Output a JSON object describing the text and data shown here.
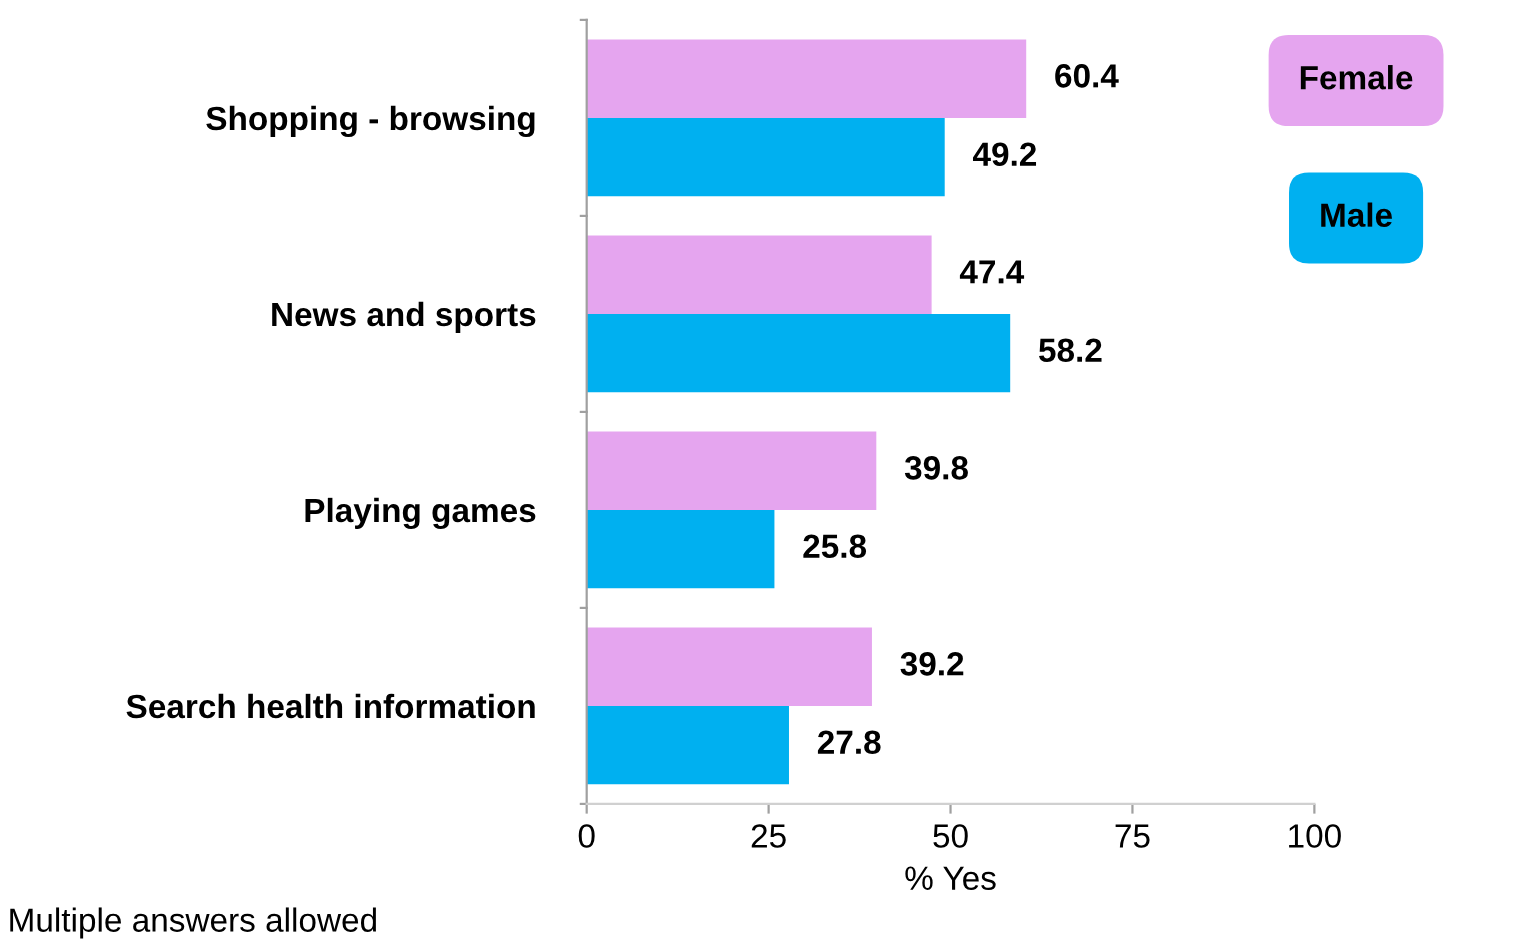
{
  "chart_data": {
    "type": "bar",
    "orientation": "horizontal",
    "categories": [
      "Shopping - browsing",
      "News and sports",
      "Playing games",
      "Search health information"
    ],
    "series": [
      {
        "name": "Female",
        "color": "#e5a5ef",
        "values": [
          60.4,
          47.4,
          39.8,
          39.2
        ]
      },
      {
        "name": "Male",
        "color": "#00b0f0",
        "values": [
          49.2,
          58.2,
          25.8,
          27.8
        ]
      }
    ],
    "xlim": [
      0,
      100
    ],
    "xticks": [
      0,
      25,
      50,
      75,
      100
    ],
    "xlabel": "% Yes",
    "data_labels": true,
    "legend": "top right",
    "grid": false,
    "annotations": [
      "Multiple answers allowed"
    ]
  }
}
